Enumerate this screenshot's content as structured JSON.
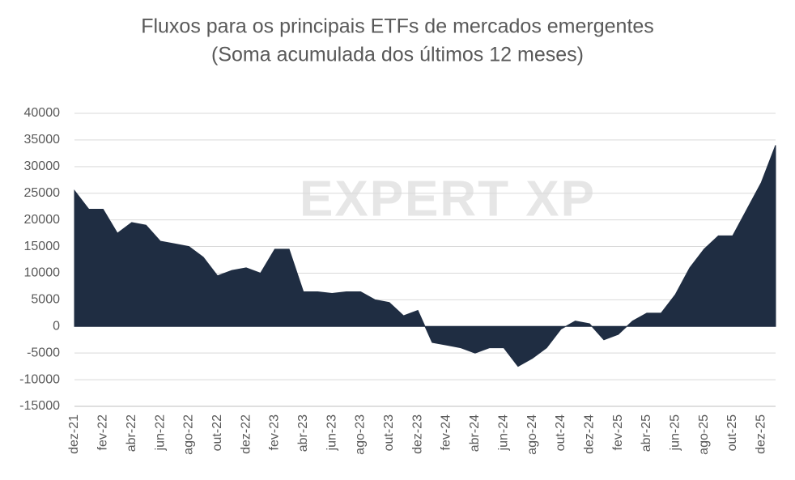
{
  "chart_data": {
    "type": "area",
    "title": "Fluxos para os principais ETFs de mercados emergentes",
    "subtitle": "(Soma acumulada dos últimos 12 meses)",
    "watermark": "EXPERT XP",
    "color": "#1f2d42",
    "grid": true,
    "categories": [
      "dez-21",
      null,
      "fev-22",
      null,
      "abr-22",
      null,
      "jun-22",
      null,
      "ago-22",
      null,
      "out-22",
      null,
      "dez-22",
      null,
      "fev-23",
      null,
      "abr-23",
      null,
      "jun-23",
      null,
      "ago-23",
      null,
      "out-23",
      null,
      "dez-23",
      null,
      "fev-24",
      null,
      "abr-24",
      null,
      "jun-24",
      null,
      "ago-24",
      null,
      "out-24",
      null,
      "dez-24",
      null,
      "fev-25",
      null,
      "abr-25",
      null,
      "jun-25",
      null,
      "ago-25",
      null,
      "out-25",
      null,
      "dez-25",
      null
    ],
    "values": [
      25500,
      22000,
      22000,
      17500,
      19500,
      19000,
      16000,
      15500,
      15000,
      13000,
      9500,
      10500,
      11000,
      10000,
      14500,
      14500,
      6500,
      6500,
      6200,
      6500,
      6500,
      5000,
      4500,
      2000,
      3000,
      -3000,
      -3500,
      -4000,
      -5000,
      -4000,
      -4000,
      -7500,
      -6000,
      -4000,
      -500,
      1000,
      500,
      -2500,
      -1500,
      1000,
      2500,
      2500,
      6000,
      11000,
      14500,
      17000,
      17000,
      22000,
      27000,
      34000
    ],
    "ylim": [
      -15000,
      40000
    ],
    "yticks": [
      -15000,
      -10000,
      -5000,
      0,
      5000,
      10000,
      15000,
      20000,
      25000,
      30000,
      35000,
      40000
    ]
  }
}
